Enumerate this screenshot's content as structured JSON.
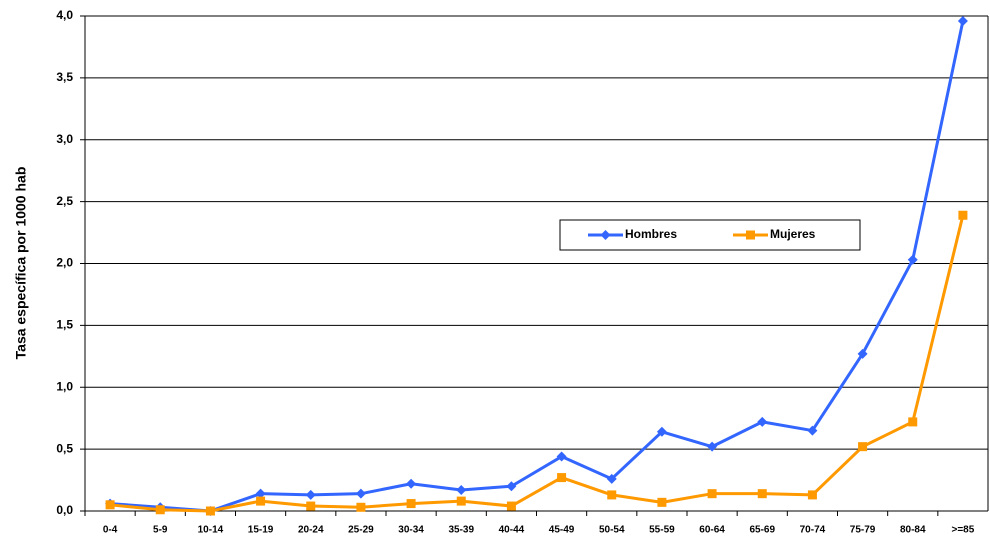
{
  "chart_data": {
    "type": "line",
    "ylabel": "Tasa específica por 1000 hab",
    "categories": [
      "0-4",
      "5-9",
      "10-14",
      "15-19",
      "20-24",
      "25-29",
      "30-34",
      "35-39",
      "40-44",
      "45-49",
      "50-54",
      "55-59",
      "60-64",
      "65-69",
      "70-74",
      "75-79",
      "80-84",
      ">=85"
    ],
    "series": [
      {
        "name": "Hombres",
        "color": "#3366ff",
        "marker": "diamond",
        "values": [
          0.06,
          0.03,
          0.0,
          0.14,
          0.13,
          0.14,
          0.22,
          0.17,
          0.2,
          0.44,
          0.26,
          0.64,
          0.52,
          0.72,
          0.65,
          1.27,
          2.03,
          3.96
        ]
      },
      {
        "name": "Mujeres",
        "color": "#ff9900",
        "marker": "square",
        "values": [
          0.05,
          0.01,
          0.0,
          0.08,
          0.04,
          0.03,
          0.06,
          0.08,
          0.04,
          0.27,
          0.13,
          0.07,
          0.14,
          0.14,
          0.13,
          0.52,
          0.72,
          2.39
        ]
      }
    ],
    "ylim": [
      0,
      4
    ],
    "yticks": [
      {
        "value": 0,
        "label": "0,0"
      },
      {
        "value": 0.5,
        "label": "0,5"
      },
      {
        "value": 1,
        "label": "1,0"
      },
      {
        "value": 1.5,
        "label": "1,5"
      },
      {
        "value": 2,
        "label": "2,0"
      },
      {
        "value": 2.5,
        "label": "2,5"
      },
      {
        "value": 3,
        "label": "3,0"
      },
      {
        "value": 3.5,
        "label": "3,5"
      },
      {
        "value": 4,
        "label": "4,0"
      }
    ],
    "grid": true,
    "legend": "right"
  }
}
